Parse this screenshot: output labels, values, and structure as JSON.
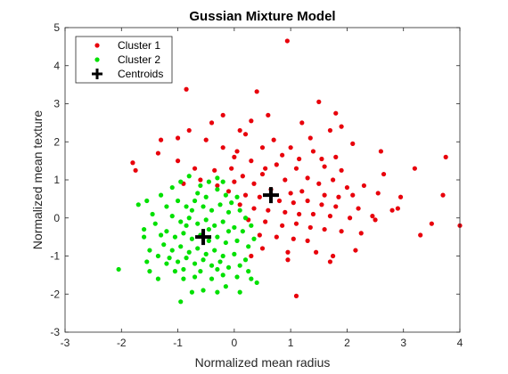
{
  "chart_data": {
    "type": "scatter",
    "title": "Gussian Mixture Model",
    "xlabel": "Normalized mean radius",
    "ylabel": "Normalized mean texture",
    "xlim": [
      -3,
      4
    ],
    "ylim": [
      -3,
      5
    ],
    "xticks": [
      "-3",
      "-2",
      "-1",
      "0",
      "1",
      "2",
      "3",
      "4"
    ],
    "yticks": [
      "-3",
      "-2",
      "-1",
      "0",
      "1",
      "2",
      "3",
      "4",
      "5"
    ],
    "grid": false,
    "legend_position": "top-left",
    "series": [
      {
        "name": "Cluster 1",
        "color": "#e8000b",
        "marker": "dot",
        "points": [
          [
            0.94,
            4.65
          ],
          [
            -0.85,
            3.38
          ],
          [
            0.4,
            3.32
          ],
          [
            1.5,
            3.05
          ],
          [
            1.8,
            2.75
          ],
          [
            -0.2,
            2.7
          ],
          [
            0.6,
            2.7
          ],
          [
            0.3,
            2.55
          ],
          [
            -0.4,
            2.5
          ],
          [
            0.1,
            2.3
          ],
          [
            -0.8,
            2.3
          ],
          [
            1.2,
            2.5
          ],
          [
            1.9,
            2.4
          ],
          [
            0.2,
            2.2
          ],
          [
            -0.5,
            2.05
          ],
          [
            -1.3,
            2.05
          ],
          [
            -1.0,
            2.1
          ],
          [
            0.7,
            2.05
          ],
          [
            1.35,
            2.1
          ],
          [
            1.7,
            2.3
          ],
          [
            2.1,
            1.95
          ],
          [
            0.5,
            1.85
          ],
          [
            -0.2,
            1.85
          ],
          [
            0.85,
            1.65
          ],
          [
            1.4,
            1.75
          ],
          [
            1.0,
            1.85
          ],
          [
            1.8,
            1.6
          ],
          [
            2.6,
            1.75
          ],
          [
            3.75,
            1.6
          ],
          [
            3.2,
            1.3
          ],
          [
            -1.8,
            1.45
          ],
          [
            -1.35,
            1.7
          ],
          [
            0.0,
            1.6
          ],
          [
            0.3,
            1.5
          ],
          [
            0.75,
            1.4
          ],
          [
            1.1,
            1.3
          ],
          [
            1.6,
            1.35
          ],
          [
            1.9,
            1.25
          ],
          [
            2.65,
            1.15
          ],
          [
            -0.7,
            1.3
          ],
          [
            -0.35,
            1.25
          ],
          [
            -0.05,
            1.3
          ],
          [
            -1.75,
            1.25
          ],
          [
            0.15,
            1.1
          ],
          [
            0.5,
            1.15
          ],
          [
            0.9,
            1.0
          ],
          [
            1.3,
            1.05
          ],
          [
            1.5,
            0.9
          ],
          [
            1.75,
            1.0
          ],
          [
            2.0,
            0.8
          ],
          [
            2.3,
            0.85
          ],
          [
            0.0,
            0.95
          ],
          [
            0.35,
            0.9
          ],
          [
            0.65,
            0.75
          ],
          [
            1.0,
            0.65
          ],
          [
            1.2,
            0.7
          ],
          [
            1.6,
            0.6
          ],
          [
            1.85,
            0.55
          ],
          [
            2.1,
            0.6
          ],
          [
            2.55,
            0.65
          ],
          [
            2.95,
            0.55
          ],
          [
            3.7,
            0.6
          ],
          [
            -0.1,
            0.7
          ],
          [
            0.2,
            0.6
          ],
          [
            0.45,
            0.55
          ],
          [
            0.8,
            0.45
          ],
          [
            1.05,
            0.4
          ],
          [
            1.3,
            0.45
          ],
          [
            1.55,
            0.35
          ],
          [
            1.8,
            0.3
          ],
          [
            2.2,
            0.25
          ],
          [
            2.8,
            0.2
          ],
          [
            0.1,
            0.35
          ],
          [
            0.35,
            0.25
          ],
          [
            0.6,
            0.2
          ],
          [
            0.9,
            0.15
          ],
          [
            1.15,
            0.1
          ],
          [
            1.4,
            0.1
          ],
          [
            1.7,
            0.05
          ],
          [
            2.05,
            0.0
          ],
          [
            2.5,
            -0.05
          ],
          [
            0.25,
            -0.05
          ],
          [
            0.55,
            -0.1
          ],
          [
            0.85,
            -0.2
          ],
          [
            1.1,
            -0.15
          ],
          [
            1.35,
            -0.25
          ],
          [
            1.6,
            -0.3
          ],
          [
            1.9,
            -0.35
          ],
          [
            2.25,
            -0.4
          ],
          [
            3.3,
            -0.45
          ],
          [
            4.0,
            -0.2
          ],
          [
            0.45,
            -0.45
          ],
          [
            0.75,
            -0.5
          ],
          [
            1.05,
            -0.55
          ],
          [
            1.3,
            -0.6
          ],
          [
            0.5,
            -0.8
          ],
          [
            0.95,
            -0.9
          ],
          [
            1.45,
            -0.9
          ],
          [
            1.75,
            -1.0
          ],
          [
            2.15,
            -0.85
          ],
          [
            0.95,
            -1.1
          ],
          [
            1.7,
            -1.15
          ],
          [
            0.3,
            -1.0
          ],
          [
            1.1,
            -2.05
          ],
          [
            -0.3,
            0.85
          ],
          [
            -0.6,
            1.0
          ],
          [
            0.05,
            1.75
          ],
          [
            -1.0,
            1.5
          ],
          [
            -0.9,
            0.9
          ],
          [
            0.55,
            1.3
          ],
          [
            1.15,
            1.55
          ],
          [
            1.55,
            1.55
          ],
          [
            2.45,
            0.05
          ],
          [
            2.9,
            0.25
          ],
          [
            3.5,
            -0.15
          ]
        ]
      },
      {
        "name": "Cluster 2",
        "color": "#00e000",
        "marker": "dot",
        "points": [
          [
            -2.05,
            -1.35
          ],
          [
            -1.5,
            -1.4
          ],
          [
            -1.35,
            -1.6
          ],
          [
            -0.95,
            -2.2
          ],
          [
            -0.75,
            -1.95
          ],
          [
            -0.55,
            -1.9
          ],
          [
            -0.3,
            -1.95
          ],
          [
            -0.15,
            -1.8
          ],
          [
            0.1,
            -1.95
          ],
          [
            0.4,
            -1.7
          ],
          [
            -1.6,
            -0.5
          ],
          [
            -1.7,
            0.35
          ],
          [
            -1.55,
            0.45
          ],
          [
            -1.3,
            0.6
          ],
          [
            -1.2,
            0.3
          ],
          [
            -1.4,
            -0.15
          ],
          [
            -1.5,
            -0.85
          ],
          [
            -1.35,
            -1.0
          ],
          [
            -1.2,
            -1.2
          ],
          [
            -1.05,
            -1.4
          ],
          [
            -0.9,
            -1.6
          ],
          [
            -0.7,
            -1.55
          ],
          [
            -0.4,
            -1.6
          ],
          [
            -0.2,
            -1.5
          ],
          [
            0.05,
            -1.55
          ],
          [
            0.25,
            -1.4
          ],
          [
            -1.1,
            0.8
          ],
          [
            -0.95,
            0.95
          ],
          [
            -0.8,
            1.1
          ],
          [
            -0.6,
            0.85
          ],
          [
            -0.45,
            0.95
          ],
          [
            -0.3,
            0.75
          ],
          [
            -0.15,
            0.6
          ],
          [
            0.05,
            0.55
          ],
          [
            -1.0,
            0.45
          ],
          [
            -0.85,
            0.3
          ],
          [
            -0.7,
            0.45
          ],
          [
            -0.55,
            0.3
          ],
          [
            -0.4,
            0.2
          ],
          [
            -0.25,
            0.35
          ],
          [
            -0.1,
            0.15
          ],
          [
            0.1,
            0.2
          ],
          [
            0.2,
            0.0
          ],
          [
            -1.1,
            0.05
          ],
          [
            -0.95,
            -0.1
          ],
          [
            -0.8,
            0.0
          ],
          [
            -0.65,
            -0.15
          ],
          [
            -0.5,
            -0.05
          ],
          [
            -0.35,
            -0.2
          ],
          [
            -0.2,
            -0.1
          ],
          [
            0.0,
            -0.25
          ],
          [
            0.15,
            -0.35
          ],
          [
            -1.2,
            -0.35
          ],
          [
            -1.05,
            -0.5
          ],
          [
            -0.9,
            -0.4
          ],
          [
            -0.75,
            -0.55
          ],
          [
            -0.6,
            -0.45
          ],
          [
            -0.45,
            -0.6
          ],
          [
            -0.3,
            -0.5
          ],
          [
            -0.15,
            -0.65
          ],
          [
            0.05,
            -0.6
          ],
          [
            0.25,
            -0.75
          ],
          [
            -1.25,
            -0.7
          ],
          [
            -1.1,
            -0.85
          ],
          [
            -0.95,
            -0.75
          ],
          [
            -0.8,
            -0.9
          ],
          [
            -0.65,
            -0.8
          ],
          [
            -0.5,
            -0.95
          ],
          [
            -0.35,
            -0.85
          ],
          [
            -0.2,
            -1.0
          ],
          [
            0.0,
            -0.95
          ],
          [
            0.2,
            -1.1
          ],
          [
            -1.15,
            -1.05
          ],
          [
            -1.0,
            -1.15
          ],
          [
            -0.85,
            -1.05
          ],
          [
            -0.7,
            -1.2
          ],
          [
            -0.55,
            -1.1
          ],
          [
            -0.4,
            -1.25
          ],
          [
            -0.25,
            -1.15
          ],
          [
            -0.1,
            -1.3
          ],
          [
            0.1,
            -1.25
          ],
          [
            -0.9,
            -1.35
          ],
          [
            -0.6,
            -1.4
          ],
          [
            -0.3,
            -1.35
          ],
          [
            -1.45,
            0.1
          ],
          [
            -1.3,
            -0.45
          ],
          [
            -0.3,
            1.05
          ],
          [
            -0.05,
            0.4
          ],
          [
            0.3,
            -0.2
          ],
          [
            0.35,
            -0.55
          ],
          [
            -0.65,
            0.65
          ],
          [
            -0.2,
            0.95
          ],
          [
            -1.6,
            -0.3
          ],
          [
            -0.1,
            -0.35
          ],
          [
            -0.75,
            0.2
          ],
          [
            -0.5,
            0.55
          ],
          [
            -1.55,
            -1.15
          ],
          [
            0.3,
            -1.6
          ],
          [
            -0.45,
            -0.3
          ],
          [
            -0.85,
            -0.2
          ]
        ]
      }
    ],
    "centroids": {
      "name": "Centroids",
      "color": "#000000",
      "marker": "plus",
      "points": [
        [
          0.65,
          0.6
        ],
        [
          -0.55,
          -0.5
        ]
      ]
    }
  }
}
